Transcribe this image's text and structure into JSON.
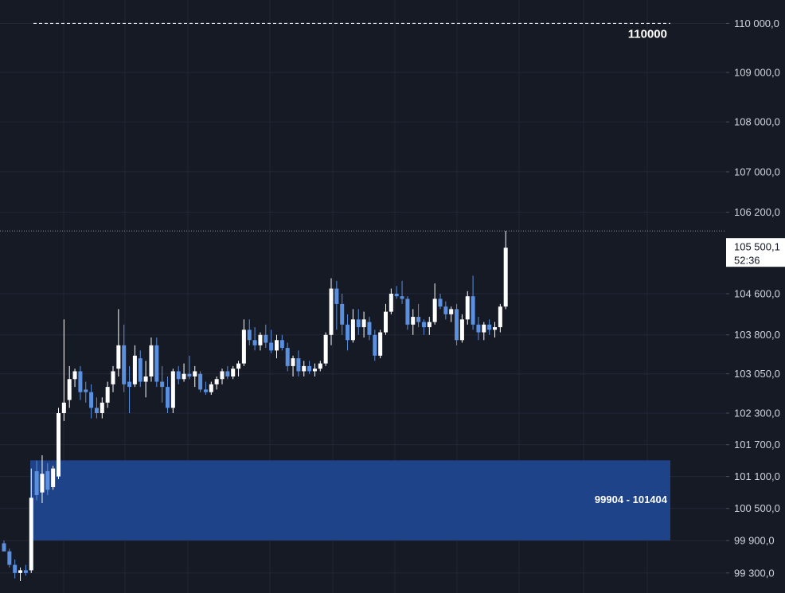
{
  "chart_data": {
    "type": "candlestick",
    "log_scale": true,
    "grid": true,
    "up_color": "#ffffff",
    "down_color": "#5b8fe0",
    "ylim": [
      98930,
      110480
    ],
    "yticks": [
      {
        "value": 110000,
        "label": "110 000,0"
      },
      {
        "value": 109000,
        "label": "109 000,0"
      },
      {
        "value": 108000,
        "label": "108 000,0"
      },
      {
        "value": 107000,
        "label": "107 000,0"
      },
      {
        "value": 106200,
        "label": "106 200,0"
      },
      {
        "value": 104600,
        "label": "104 600,0"
      },
      {
        "value": 103800,
        "label": "103 800,0"
      },
      {
        "value": 103050,
        "label": "103 050,0"
      },
      {
        "value": 102300,
        "label": "102 300,0"
      },
      {
        "value": 101700,
        "label": "101 700,0"
      },
      {
        "value": 101100,
        "label": "101 100,0"
      },
      {
        "value": 100500,
        "label": "100 500,0"
      },
      {
        "value": 99900,
        "label": "99 900,0"
      },
      {
        "value": 99300,
        "label": "99 300,0"
      }
    ],
    "level_line": 110000,
    "zone": {
      "low": 99904,
      "high": 101404,
      "label": "99904 - 101404",
      "color": "#1f4690"
    },
    "current_price": {
      "value": 105500.1,
      "label": "105 500,1",
      "countdown": "52:36"
    },
    "open": [
      99850,
      99700,
      99450,
      99300,
      99350,
      99350,
      101200,
      100800,
      101200,
      100900,
      101100,
      102300,
      102550,
      102950,
      103100,
      102750,
      102700,
      102400,
      102300,
      102500,
      102850,
      103150,
      103600,
      102900,
      102850,
      103350,
      102900,
      103000,
      103600,
      102900,
      102800,
      102400,
      103100,
      102950,
      103050,
      103000,
      103050,
      102750,
      102700,
      102850,
      102950,
      103100,
      103000,
      103150,
      103250,
      103900,
      103700,
      103600,
      103800,
      103650,
      103500,
      103700,
      103550,
      103200,
      103350,
      103100,
      103200,
      103100,
      103150,
      103250,
      103800,
      104700,
      104400,
      104000,
      103700,
      104100,
      103950,
      104050,
      103800,
      103400,
      103850,
      104250,
      104600,
      104550,
      104500,
      104000,
      104150,
      104050,
      103950,
      104050,
      104500,
      104350,
      104200,
      104300,
      103700,
      104100,
      104550,
      104000,
      103850,
      104000,
      103900,
      103950,
      104350
    ],
    "high": [
      99900,
      99750,
      99550,
      99400,
      99450,
      101250,
      101400,
      101500,
      101350,
      101300,
      102400,
      104100,
      103200,
      103150,
      103200,
      102900,
      102850,
      102600,
      102600,
      102900,
      103200,
      104300,
      104000,
      103200,
      103600,
      103500,
      103300,
      103750,
      103750,
      103200,
      103000,
      103150,
      103200,
      103250,
      103400,
      103200,
      103100,
      102900,
      102900,
      103000,
      103150,
      103200,
      103200,
      103300,
      104100,
      104100,
      103950,
      103850,
      104000,
      103900,
      103800,
      103800,
      103650,
      103400,
      103500,
      103300,
      103300,
      103250,
      103300,
      103850,
      104900,
      104850,
      104600,
      104200,
      104300,
      104300,
      104250,
      104150,
      103900,
      103900,
      104400,
      104700,
      104750,
      104850,
      104550,
      104300,
      104400,
      104100,
      104150,
      104800,
      104600,
      104450,
      104350,
      104400,
      104200,
      104650,
      104950,
      104150,
      104050,
      104100,
      104050,
      104400,
      105830
    ],
    "low": [
      99700,
      99400,
      99200,
      99150,
      99250,
      99300,
      100650,
      100600,
      100750,
      100850,
      101050,
      102150,
      102400,
      102800,
      102550,
      102500,
      102200,
      102200,
      102200,
      102400,
      102700,
      103000,
      102700,
      102300,
      102800,
      102800,
      102600,
      102900,
      102800,
      102500,
      102300,
      102300,
      102850,
      102900,
      102950,
      102800,
      102700,
      102650,
      102650,
      102750,
      102850,
      102950,
      102950,
      103000,
      103200,
      103600,
      103500,
      103500,
      103550,
      103450,
      103350,
      103500,
      103100,
      103000,
      103000,
      103000,
      103050,
      103000,
      103100,
      103200,
      103600,
      103900,
      103800,
      103500,
      103650,
      103800,
      103750,
      103700,
      103300,
      103350,
      103800,
      104200,
      104500,
      104400,
      103900,
      103800,
      103950,
      103800,
      103800,
      104000,
      104300,
      104100,
      104050,
      103600,
      103650,
      104000,
      103900,
      103700,
      103700,
      103800,
      103750,
      103850,
      104300
    ],
    "close": [
      99700,
      99450,
      99300,
      99350,
      99300,
      100700,
      100750,
      101150,
      100850,
      101250,
      102300,
      102500,
      102950,
      103100,
      102700,
      102700,
      102400,
      102300,
      102500,
      102800,
      103100,
      103600,
      102850,
      102800,
      103400,
      102900,
      103000,
      103600,
      102900,
      102800,
      102400,
      103100,
      102950,
      103050,
      103000,
      103100,
      102750,
      102700,
      102850,
      102950,
      103100,
      103000,
      103150,
      103250,
      103900,
      103700,
      103600,
      103800,
      103650,
      103500,
      103700,
      103550,
      103200,
      103350,
      103100,
      103200,
      103100,
      103150,
      103250,
      103800,
      104700,
      104400,
      104000,
      103700,
      104100,
      103950,
      104100,
      103800,
      103400,
      103850,
      104250,
      104600,
      104550,
      104500,
      104000,
      104150,
      104050,
      103950,
      104050,
      104500,
      104350,
      104200,
      104300,
      103700,
      104100,
      104550,
      104000,
      103850,
      104000,
      103900,
      103950,
      104350,
      105500
    ]
  }
}
